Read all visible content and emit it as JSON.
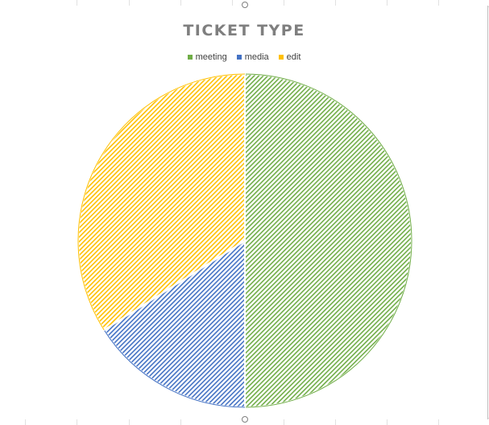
{
  "chart_data": {
    "type": "pie",
    "title": "TICKET TYPE",
    "legend_position": "top",
    "categories": [
      "meeting",
      "media",
      "edit"
    ],
    "values": [
      50,
      16,
      34
    ],
    "colors": [
      "#70ad47",
      "#4472c4",
      "#ffc000"
    ],
    "fill_pattern": "diagonal-stripes"
  }
}
